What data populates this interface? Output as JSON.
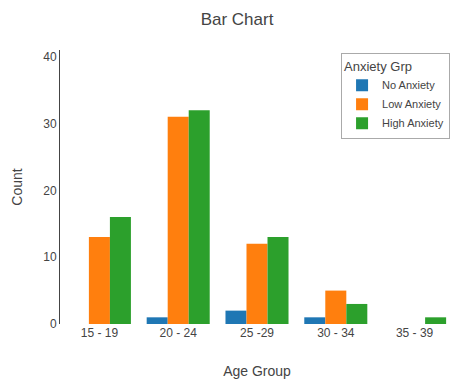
{
  "chart_data": {
    "type": "bar",
    "title": "Bar Chart",
    "x_label": "Age Group",
    "y_label": "Count",
    "categories": [
      "15 - 19",
      "20 - 24",
      "25 -29",
      "30 - 34",
      "35 - 39"
    ],
    "series": [
      {
        "name": "No Anxiety",
        "values": [
          0,
          1,
          2,
          1,
          0
        ]
      },
      {
        "name": "Low Anxiety",
        "values": [
          13,
          31,
          12,
          5,
          0
        ]
      },
      {
        "name": "High Anxiety",
        "values": [
          16,
          32,
          13,
          3,
          1
        ]
      }
    ],
    "legend_title": "Anxiety Grp",
    "ylim": [
      0,
      41
    ],
    "yticks": [
      0,
      10,
      20,
      30,
      40
    ],
    "grid": false,
    "legend": "upper right"
  }
}
